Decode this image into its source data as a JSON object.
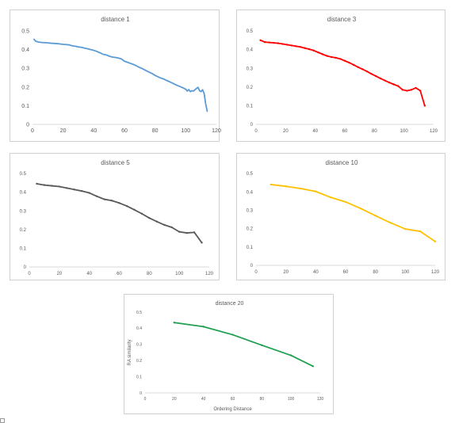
{
  "chart_data": [
    {
      "type": "line",
      "title": "distance 1",
      "color": "#5B9BD5",
      "markers": false,
      "xlabel": "",
      "ylabel": "",
      "xlim": [
        0,
        120
      ],
      "ylim": [
        0,
        0.5
      ],
      "xticks": [
        "0",
        "20",
        "40",
        "60",
        "80",
        "100",
        "120"
      ],
      "yticks": [
        "0",
        "0.1",
        "0.2",
        "0.3",
        "0.4",
        "0.5"
      ],
      "series": [
        {
          "x": [
            1,
            2,
            4,
            6,
            8,
            10,
            12,
            14,
            16,
            18,
            20,
            22,
            24,
            26,
            28,
            30,
            32,
            34,
            36,
            38,
            40,
            42,
            44,
            46,
            48,
            50,
            52,
            54,
            56,
            58,
            60,
            62,
            64,
            66,
            68,
            70,
            72,
            74,
            76,
            78,
            80,
            82,
            84,
            86,
            88,
            90,
            92,
            94,
            96,
            98,
            100,
            101,
            102,
            103,
            104,
            105,
            106,
            107,
            108,
            109,
            110,
            111,
            112,
            113,
            114
          ],
          "y": [
            0.455,
            0.445,
            0.44,
            0.438,
            0.437,
            0.436,
            0.434,
            0.433,
            0.432,
            0.43,
            0.428,
            0.427,
            0.425,
            0.42,
            0.418,
            0.414,
            0.412,
            0.408,
            0.404,
            0.4,
            0.396,
            0.39,
            0.383,
            0.375,
            0.372,
            0.365,
            0.36,
            0.358,
            0.355,
            0.35,
            0.338,
            0.332,
            0.326,
            0.32,
            0.312,
            0.304,
            0.297,
            0.288,
            0.28,
            0.272,
            0.262,
            0.254,
            0.247,
            0.241,
            0.233,
            0.226,
            0.218,
            0.21,
            0.203,
            0.196,
            0.188,
            0.178,
            0.186,
            0.175,
            0.18,
            0.178,
            0.185,
            0.192,
            0.198,
            0.18,
            0.175,
            0.185,
            0.165,
            0.11,
            0.07
          ]
        }
      ]
    },
    {
      "type": "line",
      "title": "distance 3",
      "color": "#FF0000",
      "markers": true,
      "xlabel": "",
      "ylabel": "",
      "xlim": [
        0,
        120
      ],
      "ylim": [
        0,
        0.5
      ],
      "xticks": [
        "0",
        "20",
        "40",
        "60",
        "80",
        "100",
        "120"
      ],
      "yticks": [
        "0",
        "0.1",
        "0.2",
        "0.3",
        "0.4",
        "0.5"
      ],
      "series": [
        {
          "x": [
            3,
            6,
            9,
            12,
            15,
            18,
            21,
            24,
            27,
            30,
            33,
            36,
            39,
            42,
            45,
            48,
            51,
            54,
            57,
            60,
            63,
            66,
            69,
            72,
            75,
            78,
            81,
            84,
            87,
            90,
            93,
            96,
            99,
            102,
            105,
            108,
            111,
            114
          ],
          "y": [
            0.45,
            0.44,
            0.438,
            0.436,
            0.434,
            0.43,
            0.426,
            0.422,
            0.418,
            0.414,
            0.408,
            0.402,
            0.395,
            0.385,
            0.375,
            0.366,
            0.36,
            0.356,
            0.35,
            0.34,
            0.33,
            0.318,
            0.306,
            0.295,
            0.283,
            0.27,
            0.258,
            0.246,
            0.235,
            0.224,
            0.214,
            0.205,
            0.185,
            0.18,
            0.185,
            0.195,
            0.18,
            0.1
          ]
        }
      ]
    },
    {
      "type": "line",
      "title": "distance 5",
      "color": "#595959",
      "markers": true,
      "xlabel": "",
      "ylabel": "",
      "xlim": [
        0,
        120
      ],
      "ylim": [
        0,
        0.5
      ],
      "xticks": [
        "0",
        "20",
        "40",
        "60",
        "80",
        "100",
        "120"
      ],
      "yticks": [
        "0",
        "0.1",
        "0.2",
        "0.3",
        "0.4",
        "0.5"
      ],
      "series": [
        {
          "x": [
            5,
            10,
            15,
            20,
            25,
            30,
            35,
            40,
            45,
            50,
            55,
            60,
            65,
            70,
            75,
            80,
            85,
            90,
            95,
            100,
            105,
            110,
            115
          ],
          "y": [
            0.445,
            0.438,
            0.434,
            0.43,
            0.422,
            0.414,
            0.406,
            0.396,
            0.378,
            0.362,
            0.355,
            0.342,
            0.326,
            0.306,
            0.285,
            0.262,
            0.243,
            0.225,
            0.212,
            0.188,
            0.182,
            0.185,
            0.13
          ]
        }
      ]
    },
    {
      "type": "line",
      "title": "distance 10",
      "color": "#FFC000",
      "markers": true,
      "xlabel": "",
      "ylabel": "",
      "xlim": [
        0,
        120
      ],
      "ylim": [
        0,
        0.5
      ],
      "xticks": [
        "0",
        "20",
        "40",
        "60",
        "80",
        "100",
        "120"
      ],
      "yticks": [
        "0",
        "0.1",
        "0.2",
        "0.3",
        "0.4",
        "0.5"
      ],
      "series": [
        {
          "x": [
            10,
            20,
            30,
            40,
            50,
            60,
            70,
            80,
            90,
            100,
            110,
            120
          ],
          "y": [
            0.44,
            0.43,
            0.418,
            0.402,
            0.37,
            0.345,
            0.31,
            0.27,
            0.232,
            0.198,
            0.185,
            0.13
          ]
        }
      ]
    },
    {
      "type": "line",
      "title": "distance 20",
      "color": "#1FA050",
      "markers": true,
      "xlabel": "Ordering Distance",
      "ylabel": "RA similarity",
      "xlim": [
        0,
        120
      ],
      "ylim": [
        0,
        0.5
      ],
      "xticks": [
        "0",
        "20",
        "40",
        "60",
        "80",
        "100",
        "120"
      ],
      "yticks": [
        "0",
        "0.1",
        "0.2",
        "0.3",
        "0.4",
        "0.5"
      ],
      "series": [
        {
          "x": [
            20,
            40,
            60,
            80,
            100,
            115
          ],
          "y": [
            0.435,
            0.41,
            0.36,
            0.295,
            0.232,
            0.165
          ]
        }
      ]
    }
  ]
}
